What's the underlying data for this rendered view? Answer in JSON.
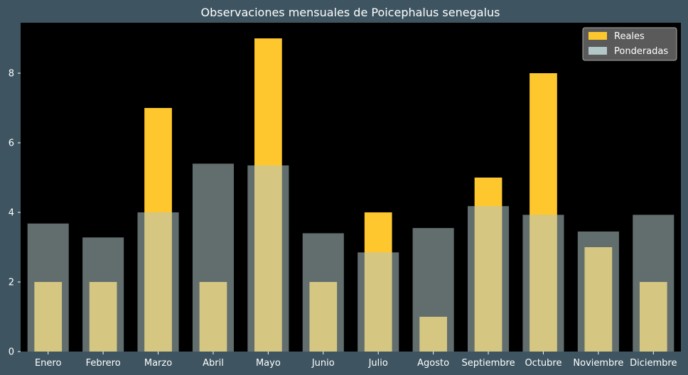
{
  "chart_data": {
    "type": "bar",
    "title": "Observaciones mensuales de Poicephalus senegalus",
    "xlabel": "",
    "ylabel": "",
    "categories": [
      "Enero",
      "Febrero",
      "Marzo",
      "Abril",
      "Mayo",
      "Junio",
      "Julio",
      "Agosto",
      "Septiembre",
      "Octubre",
      "Noviembre",
      "Diciembre"
    ],
    "series": [
      {
        "name": "Reales",
        "color": "#ffc72e",
        "values": [
          2,
          2,
          7,
          2,
          9,
          2,
          4,
          1,
          5,
          8,
          3,
          2
        ]
      },
      {
        "name": "Ponderadas",
        "color": "#b3c7c9",
        "values": [
          3.68,
          3.28,
          4.0,
          5.4,
          5.35,
          3.4,
          2.85,
          3.55,
          4.18,
          3.93,
          3.45,
          3.93
        ]
      }
    ],
    "ylim": [
      0,
      9.45
    ],
    "yticks": [
      0,
      2,
      4,
      6,
      8
    ],
    "grid": false,
    "legend_position": "top-right"
  },
  "colors": {
    "background": "#3e5561",
    "plot_background": "#000000",
    "legend_background": "#5a5a5a"
  }
}
